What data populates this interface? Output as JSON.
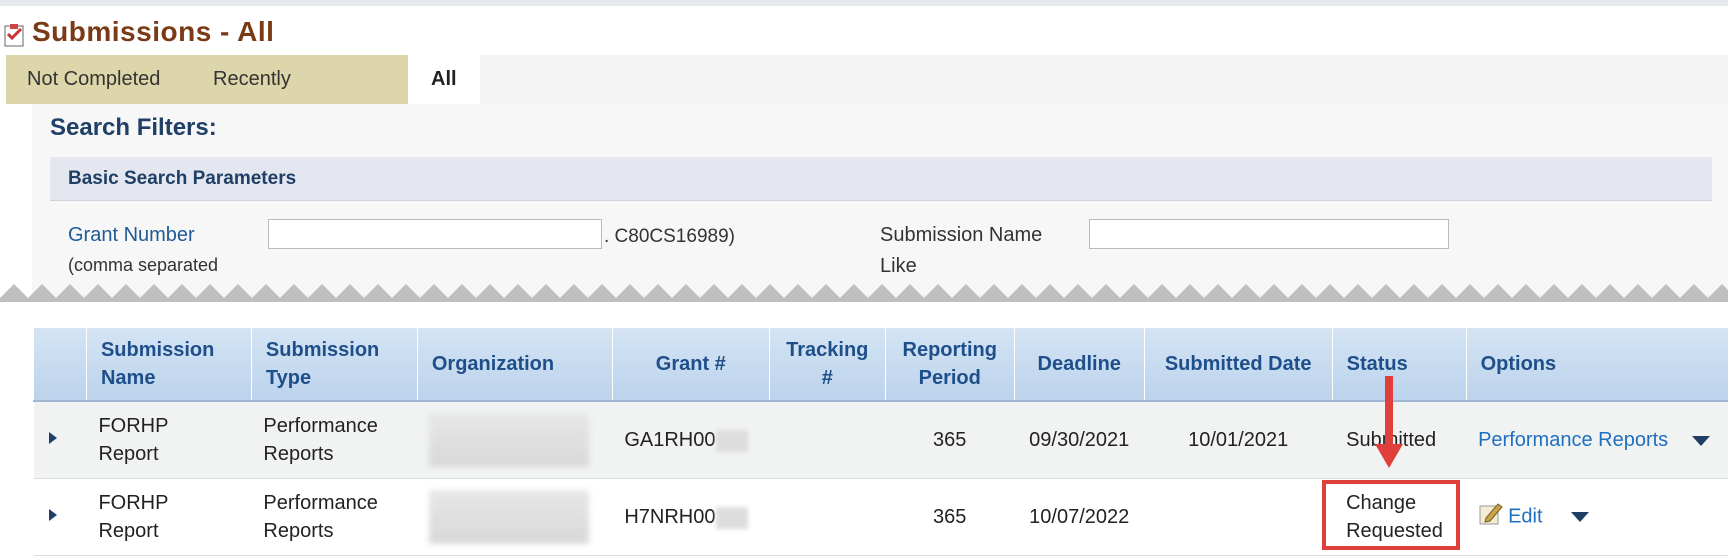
{
  "header": {
    "title": "Submissions - All"
  },
  "tabs": [
    "Not Completed",
    "Recently Completed",
    "All"
  ],
  "search": {
    "title": "Search Filters:",
    "section": "Basic Search Parameters",
    "grant_label": "Grant Number",
    "grant_note": "(comma separated",
    "grant_hint": ". C80CS16989)",
    "name_label": "Submission Name",
    "name_label2": "Like"
  },
  "table": {
    "headers": [
      [
        "Submission",
        "Name"
      ],
      [
        "Submission",
        "Type"
      ],
      [
        "Organization"
      ],
      [
        "Grant #"
      ],
      [
        "Tracking",
        "#"
      ],
      [
        "Reporting",
        "Period"
      ],
      [
        "Deadline"
      ],
      [
        "Submitted Date"
      ],
      [
        "Status"
      ],
      [
        "Options"
      ]
    ],
    "rows": [
      {
        "name": [
          "FORHP",
          "Report"
        ],
        "type": [
          "Performance",
          "Reports"
        ],
        "grant": "GA1RH00",
        "period": "365",
        "deadline": "09/30/2021",
        "submitted": "10/01/2021",
        "status": [
          "Submitted"
        ],
        "option": "Performance Reports"
      },
      {
        "name": [
          "FORHP",
          "Report"
        ],
        "type": [
          "Performance",
          "Reports"
        ],
        "grant": "H7NRH00",
        "period": "365",
        "deadline": "10/07/2022",
        "submitted": null,
        "status": [
          "Change",
          "Requested"
        ],
        "option": "Edit"
      }
    ]
  }
}
